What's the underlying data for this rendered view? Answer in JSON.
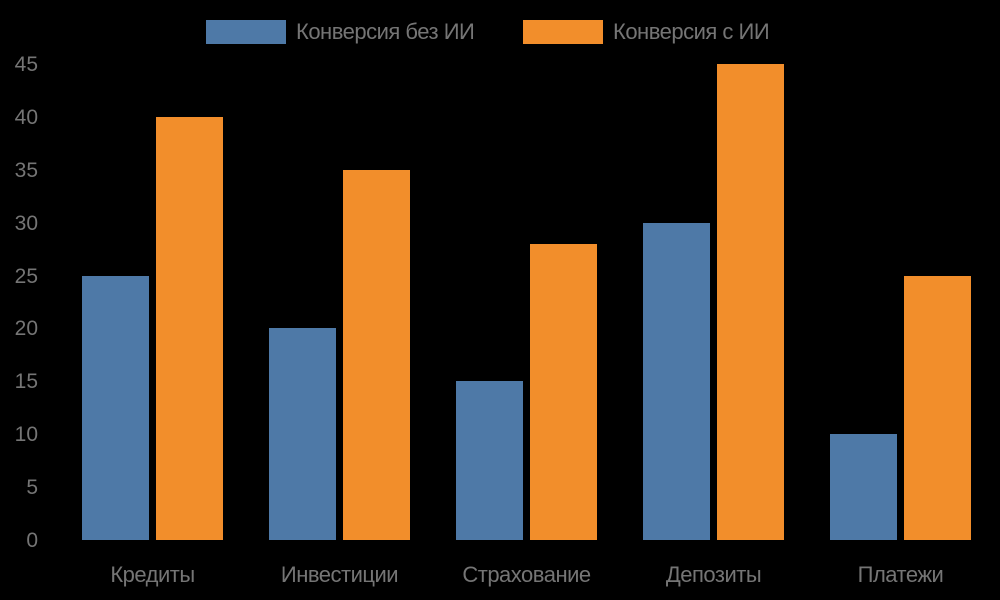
{
  "chart_data": {
    "type": "bar",
    "title": "",
    "xlabel": "",
    "ylabel": "",
    "ylim": [
      0,
      45
    ],
    "yticks": [
      0,
      5,
      10,
      15,
      20,
      25,
      30,
      35,
      40,
      45
    ],
    "grid": false,
    "legend_position": "top",
    "categories": [
      "Кредиты",
      "Инвестиции",
      "Страхование",
      "Депозиты",
      "Платежи"
    ],
    "series": [
      {
        "name": "Конверсия без ИИ",
        "color": "#4e79a7",
        "values": [
          25,
          20,
          15,
          30,
          10
        ]
      },
      {
        "name": "Конверсия с ИИ",
        "color": "#f28e2b",
        "values": [
          40,
          35,
          28,
          45,
          25
        ]
      }
    ]
  }
}
